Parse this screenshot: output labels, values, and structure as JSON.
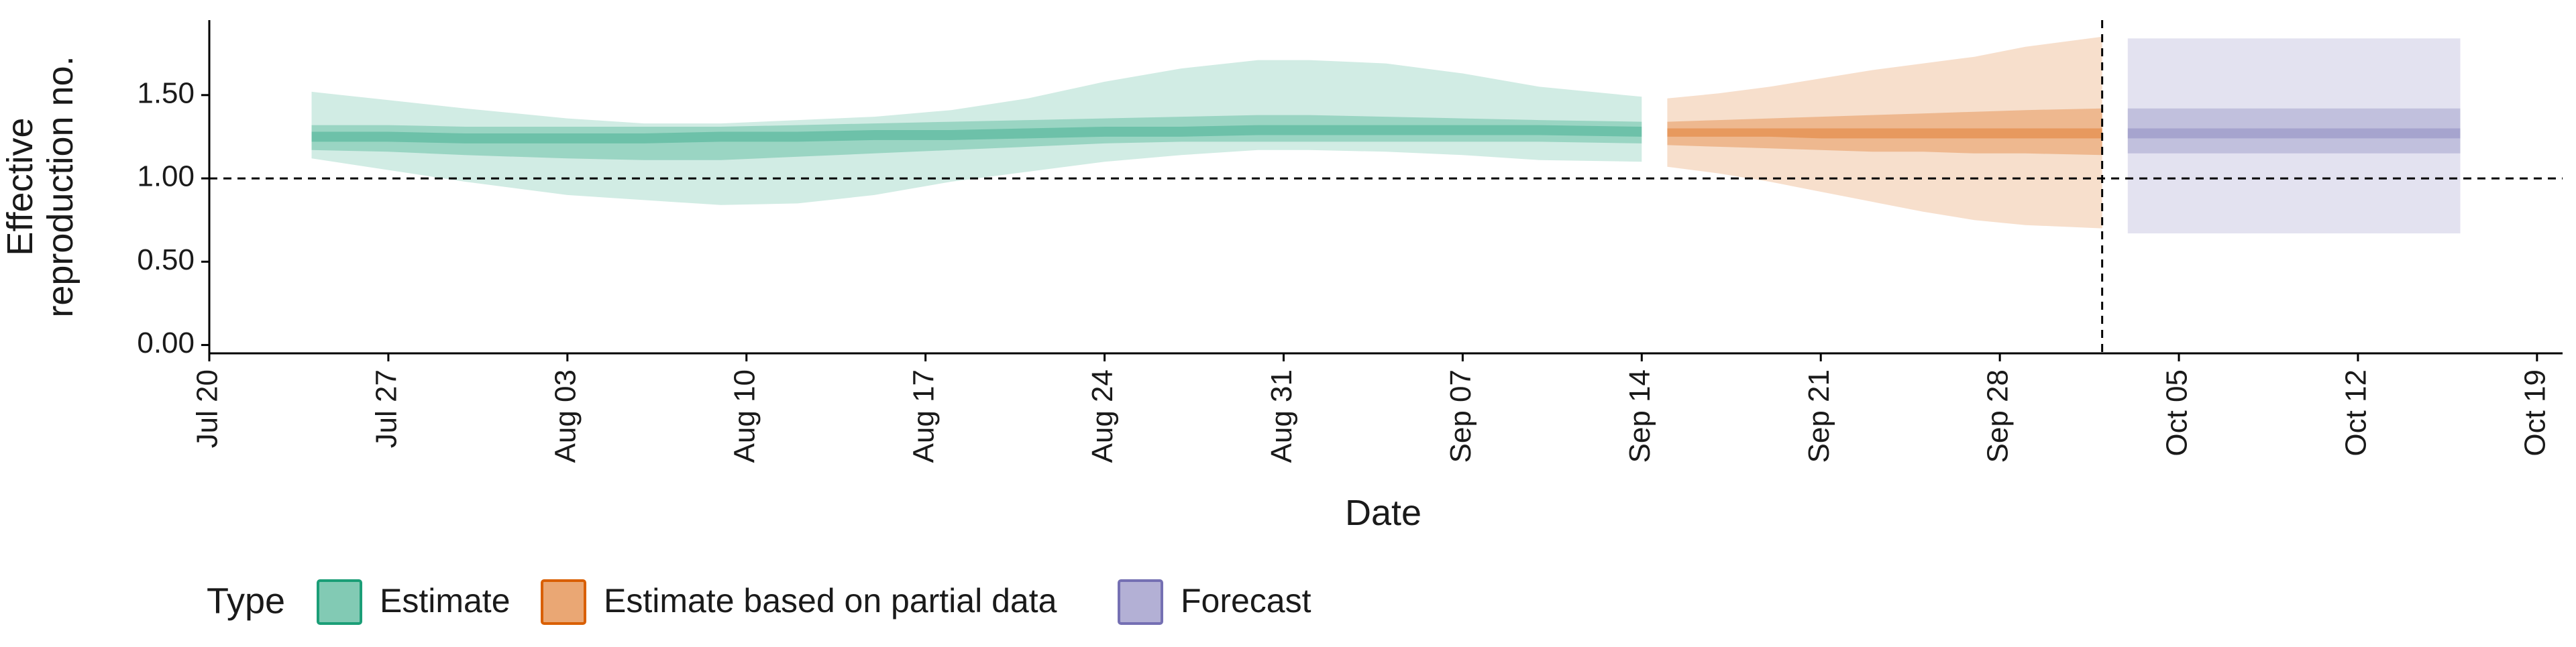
{
  "chart_data": {
    "type": "area",
    "xlabel": "Date",
    "ylabel_lines": [
      "Effective",
      "reproduction no."
    ],
    "x_ticks": [
      "Jul 20",
      "Jul 27",
      "Aug 03",
      "Aug 10",
      "Aug 17",
      "Aug 24",
      "Aug 31",
      "Sep 07",
      "Sep 14",
      "Sep 21",
      "Sep 28",
      "Oct 05",
      "Oct 12",
      "Oct 19"
    ],
    "x_tick_dates": [
      "2020-07-20",
      "2020-07-27",
      "2020-08-03",
      "2020-08-10",
      "2020-08-17",
      "2020-08-24",
      "2020-08-31",
      "2020-09-07",
      "2020-09-14",
      "2020-09-21",
      "2020-09-28",
      "2020-10-05",
      "2020-10-12",
      "2020-10-19"
    ],
    "xlim": [
      "2020-07-20",
      "2020-10-20"
    ],
    "y_ticks": [
      "0.00",
      "0.50",
      "1.00",
      "1.50"
    ],
    "y_tick_values": [
      0,
      0.5,
      1.0,
      1.5
    ],
    "ylim": [
      -0.05,
      1.95
    ],
    "reference_hline": 1.0,
    "forecast_vline": "2020-10-02",
    "legend_title": "Type",
    "legend_position": "bottom-left",
    "series": [
      {
        "name": "Estimate",
        "color": "#1b9e77",
        "dates": [
          "2020-07-24",
          "2020-07-27",
          "2020-07-30",
          "2020-08-03",
          "2020-08-06",
          "2020-08-09",
          "2020-08-12",
          "2020-08-15",
          "2020-08-18",
          "2020-08-21",
          "2020-08-24",
          "2020-08-27",
          "2020-08-30",
          "2020-09-01",
          "2020-09-04",
          "2020-09-07",
          "2020-09-10",
          "2020-09-14"
        ],
        "median": [
          1.25,
          1.25,
          1.24,
          1.24,
          1.24,
          1.25,
          1.25,
          1.26,
          1.26,
          1.27,
          1.28,
          1.28,
          1.29,
          1.29,
          1.29,
          1.29,
          1.29,
          1.28
        ],
        "lower_20": [
          1.22,
          1.22,
          1.21,
          1.21,
          1.21,
          1.22,
          1.22,
          1.23,
          1.23,
          1.24,
          1.25,
          1.25,
          1.26,
          1.26,
          1.26,
          1.26,
          1.26,
          1.25
        ],
        "upper_20": [
          1.28,
          1.28,
          1.27,
          1.27,
          1.27,
          1.28,
          1.28,
          1.29,
          1.29,
          1.3,
          1.31,
          1.31,
          1.32,
          1.32,
          1.32,
          1.32,
          1.32,
          1.31
        ],
        "lower_50": [
          1.17,
          1.16,
          1.14,
          1.12,
          1.11,
          1.11,
          1.13,
          1.15,
          1.17,
          1.19,
          1.21,
          1.22,
          1.22,
          1.22,
          1.22,
          1.22,
          1.22,
          1.21
        ],
        "upper_50": [
          1.32,
          1.32,
          1.31,
          1.31,
          1.31,
          1.31,
          1.32,
          1.33,
          1.34,
          1.35,
          1.36,
          1.37,
          1.38,
          1.38,
          1.37,
          1.36,
          1.35,
          1.34
        ],
        "lower_90": [
          1.12,
          1.05,
          0.98,
          0.9,
          0.87,
          0.84,
          0.85,
          0.9,
          0.98,
          1.04,
          1.1,
          1.14,
          1.17,
          1.17,
          1.16,
          1.14,
          1.11,
          1.1
        ],
        "upper_90": [
          1.52,
          1.47,
          1.42,
          1.36,
          1.33,
          1.33,
          1.35,
          1.37,
          1.41,
          1.48,
          1.58,
          1.66,
          1.71,
          1.71,
          1.69,
          1.63,
          1.55,
          1.49
        ]
      },
      {
        "name": "Estimate based on partial data",
        "color": "#d95f02",
        "dates": [
          "2020-09-15",
          "2020-09-17",
          "2020-09-19",
          "2020-09-21",
          "2020-09-23",
          "2020-09-25",
          "2020-09-27",
          "2020-09-29",
          "2020-10-02"
        ],
        "median": [
          1.27,
          1.27,
          1.28,
          1.27,
          1.27,
          1.27,
          1.27,
          1.27,
          1.27
        ],
        "lower_20": [
          1.25,
          1.25,
          1.25,
          1.24,
          1.24,
          1.24,
          1.24,
          1.24,
          1.24
        ],
        "upper_20": [
          1.3,
          1.3,
          1.3,
          1.3,
          1.3,
          1.3,
          1.3,
          1.3,
          1.3
        ],
        "lower_50": [
          1.2,
          1.19,
          1.18,
          1.17,
          1.16,
          1.16,
          1.15,
          1.15,
          1.14
        ],
        "upper_50": [
          1.34,
          1.35,
          1.36,
          1.37,
          1.38,
          1.39,
          1.4,
          1.41,
          1.42
        ],
        "lower_90": [
          1.07,
          1.03,
          0.98,
          0.92,
          0.86,
          0.8,
          0.75,
          0.72,
          0.7
        ],
        "upper_90": [
          1.48,
          1.51,
          1.55,
          1.6,
          1.65,
          1.69,
          1.73,
          1.79,
          1.85
        ]
      },
      {
        "name": "Forecast",
        "color": "#7570b3",
        "dates": [
          "2020-10-03",
          "2020-10-16"
        ],
        "median": [
          1.27,
          1.27
        ],
        "lower_20": [
          1.24,
          1.24
        ],
        "upper_20": [
          1.3,
          1.3
        ],
        "lower_50": [
          1.15,
          1.15
        ],
        "upper_50": [
          1.42,
          1.42
        ],
        "lower_90": [
          0.67,
          0.67
        ],
        "upper_90": [
          1.84,
          1.84
        ]
      }
    ]
  }
}
